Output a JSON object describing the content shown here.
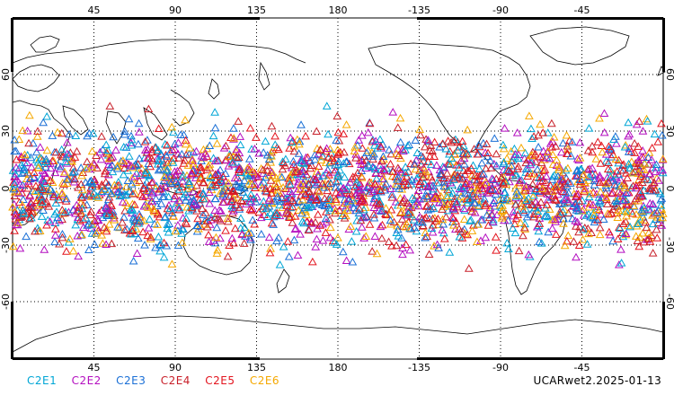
{
  "map": {
    "projection": "cylindrical-equidistant",
    "lon_range": [
      0,
      360
    ],
    "lat_range": [
      -90,
      90
    ],
    "lon_ticks": [
      "45",
      "90",
      "135",
      "180",
      "-135",
      "-90",
      "-45"
    ],
    "lat_ticks": [
      "60",
      "30",
      "0",
      "-30",
      "-60"
    ],
    "gridlines": "dotted"
  },
  "legend": {
    "items": [
      {
        "label": "C2E1",
        "color": "#00a6d6"
      },
      {
        "label": "C2E2",
        "color": "#b40fc0"
      },
      {
        "label": "C2E3",
        "color": "#1a6fd6"
      },
      {
        "label": "C2E4",
        "color": "#c8202a"
      },
      {
        "label": "C2E5",
        "color": "#e3141e"
      },
      {
        "label": "C2E6",
        "color": "#f5a800"
      }
    ]
  },
  "product_label": "UCARwet2.2025-01-13",
  "observations": {
    "marker": "triangle-outline-icon",
    "lat_band": [
      -45,
      45
    ]
  }
}
